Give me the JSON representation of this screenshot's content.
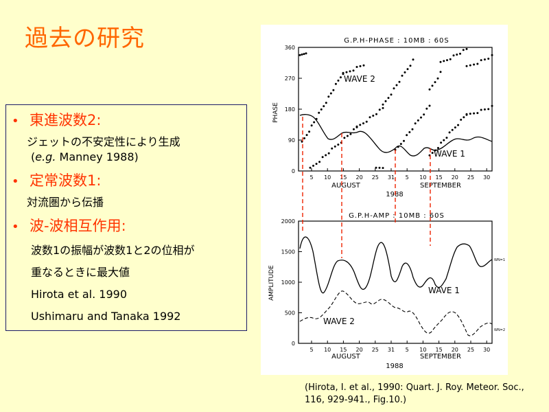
{
  "title": "過去の研究",
  "bullets": [
    {
      "heading": "東進波数2:",
      "lines": [
        "ジェットの不安定性により生成"
      ],
      "ref_pre": "(",
      "ref_italic": "e.g.",
      "ref_post": " Manney 1988)"
    },
    {
      "heading": "定常波数1:",
      "lines": [
        "対流圏から伝播"
      ]
    },
    {
      "heading": "波-波相互作用:",
      "lines": [
        "波数1の振幅が波数1と2の位相が",
        "重なるときに最大値",
        "Hirota et al. 1990",
        "Ushimaru and Tanaka 1992"
      ]
    }
  ],
  "bullet_glyph": "•",
  "caption_lines": [
    "(Hirota, I. et al., 1990: Quart. J. Roy. Meteor. Soc.,",
    "116, 929-941., Fig.10.)"
  ],
  "chart_data": [
    {
      "type": "scatter",
      "title": "G.P.H-PHASE : 10MB : 60S",
      "ylabel": "PHASE",
      "yticks": [
        0,
        90,
        180,
        270,
        360
      ],
      "ylim": [
        0,
        360
      ],
      "xticks": [
        "5",
        "10",
        "15",
        "20",
        "25",
        "31",
        "5",
        "10",
        "15",
        "20",
        "25",
        "30"
      ],
      "month_labels": [
        "AUGUST",
        "SEPTEMBER"
      ],
      "year_label": "1988",
      "series": [
        {
          "name": "WAVE 2",
          "style": "dots"
        },
        {
          "name": "WAVE 1",
          "style": "line"
        }
      ]
    },
    {
      "type": "line",
      "title": "G.P.H-AMP : 10MB : 60S",
      "ylabel": "AMPLITUDE",
      "yticks": [
        0,
        500,
        1000,
        1500,
        2000
      ],
      "ylim": [
        0,
        2000
      ],
      "xticks": [
        "5",
        "10",
        "15",
        "20",
        "25",
        "31",
        "5",
        "10",
        "15",
        "20",
        "25",
        "30"
      ],
      "month_labels": [
        "AUGUST",
        "SEPTEMBER"
      ],
      "year_label": "1988",
      "right_labels": [
        "WN=1",
        "WN=2"
      ],
      "series": [
        {
          "name": "WAVE 1",
          "style": "solid"
        },
        {
          "name": "WAVE 2",
          "style": "dashed"
        }
      ]
    }
  ]
}
